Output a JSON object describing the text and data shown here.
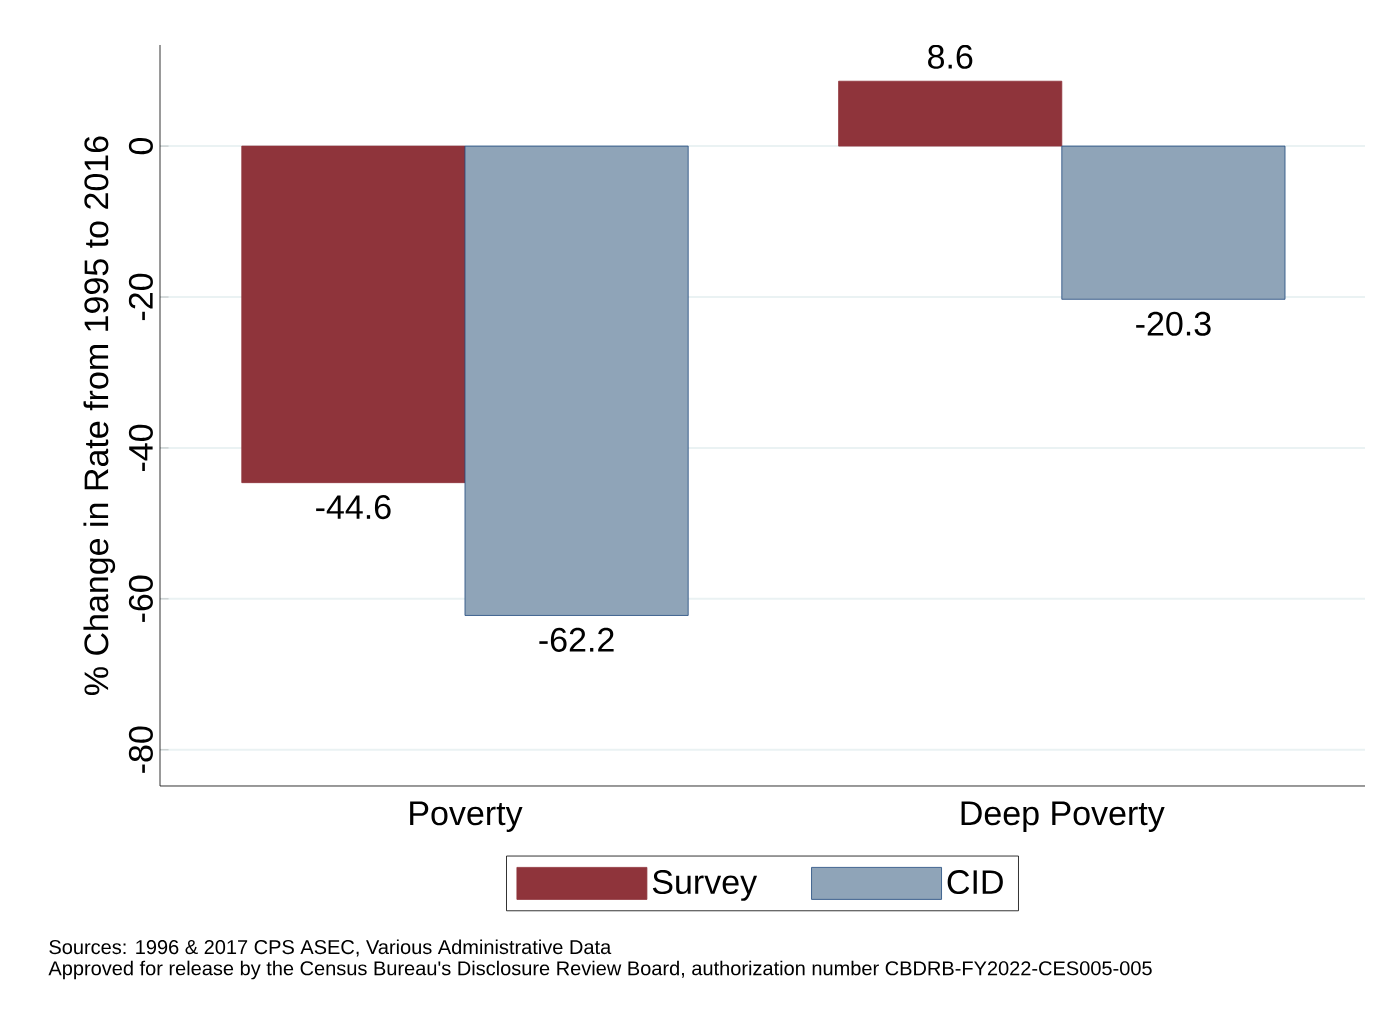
{
  "chart_data": {
    "type": "bar",
    "ylabel": "% Change in Rate from 1995 to 2016",
    "categories": [
      "Poverty",
      "Deep Poverty"
    ],
    "series": [
      {
        "name": "Survey",
        "color": "#8f343b",
        "values": [
          -44.6,
          8.6
        ]
      },
      {
        "name": "CID",
        "color": "#8fa4b8",
        "values": [
          -62.2,
          -20.3
        ]
      }
    ],
    "ylim": [
      -84.8,
      13.4
    ],
    "yticks": [
      0,
      -20,
      -40,
      -60,
      -80
    ],
    "grid": "y",
    "legend": "bottom",
    "data_labels": true,
    "annotations": [
      "Sources: 1996 & 2017 CPS ASEC, Various Administrative Data",
      "Approved for release by the Census Bureau's Disclosure Review Board, authorization number CBDRB-FY2022-CES005-005"
    ]
  }
}
